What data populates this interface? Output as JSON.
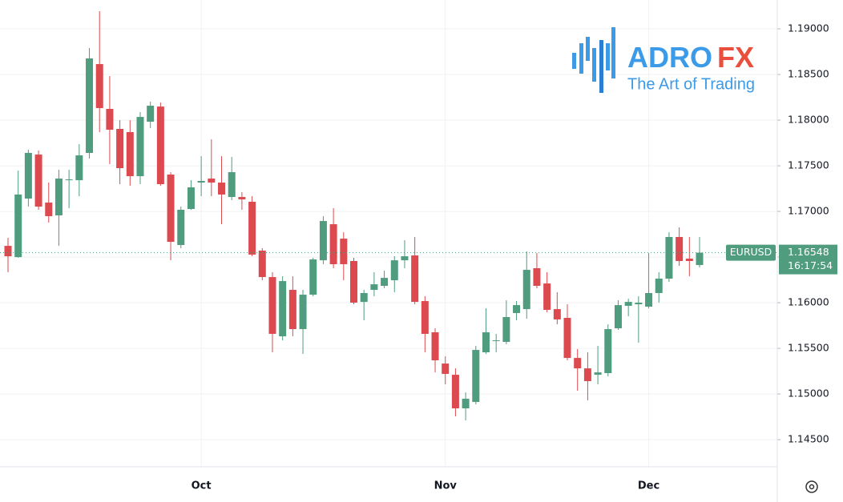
{
  "chart_data": {
    "type": "candlestick",
    "symbol": "EURUSD",
    "countdown": "16:17:54",
    "logo": {
      "name": "ADRO",
      "name_accent": "FX",
      "tagline": "The Art of Trading"
    },
    "categories": [
      null,
      null,
      null,
      null,
      null,
      null,
      null,
      null,
      null,
      null,
      null,
      null,
      null,
      null,
      null,
      null,
      null,
      null,
      null,
      "Oct",
      null,
      null,
      null,
      null,
      null,
      null,
      null,
      null,
      null,
      null,
      null,
      null,
      null,
      null,
      null,
      null,
      null,
      null,
      null,
      null,
      null,
      null,
      null,
      "Nov",
      null,
      null,
      null,
      null,
      null,
      null,
      null,
      null,
      null,
      null,
      null,
      null,
      null,
      null,
      null,
      null,
      null,
      null,
      null,
      "Dec",
      null,
      null,
      null,
      null,
      null
    ],
    "open": [
      1.16623,
      1.165,
      1.17141,
      1.17623,
      1.17097,
      1.16957,
      1.17342,
      1.17342,
      1.17641,
      1.18614,
      1.18123,
      1.17904,
      1.17869,
      1.17386,
      1.17983,
      1.18149,
      1.17404,
      1.16632,
      1.17027,
      1.17316,
      1.1736,
      1.17316,
      1.17158,
      1.17158,
      1.17106,
      1.16571,
      1.16281,
      1.15632,
      1.16141,
      1.15711,
      1.16088,
      1.16465,
      1.1686,
      1.16702,
      1.16457,
      1.16009,
      1.16141,
      1.16185,
      1.16246,
      1.16465,
      1.16518,
      1.16018,
      1.15676,
      1.15334,
      1.15211,
      1.14843,
      1.14913,
      1.15457,
      1.1558,
      1.15571,
      1.15887,
      1.1593,
      1.16378,
      1.16211,
      1.1593,
      1.15834,
      1.15395,
      1.15281,
      1.15211,
      1.15229,
      1.1572,
      1.15966,
      1.15983,
      1.15957,
      1.16106,
      1.16264,
      1.1672,
      1.16483,
      1.16413
    ],
    "high": [
      1.16711,
      1.17448,
      1.17676,
      1.17667,
      1.17316,
      1.17456,
      1.17456,
      1.17737,
      1.1879,
      1.19193,
      1.18483,
      1.18,
      1.18,
      1.18088,
      1.18202,
      1.18193,
      1.1743,
      1.17053,
      1.17342,
      1.17606,
      1.1779,
      1.17606,
      1.17597,
      1.17211,
      1.17167,
      1.16597,
      1.16334,
      1.1629,
      1.1629,
      1.16141,
      1.16492,
      1.16948,
      1.17036,
      1.16772,
      1.16492,
      1.16141,
      1.16334,
      1.16351,
      1.16509,
      1.16685,
      1.1672,
      1.16071,
      1.1572,
      1.15413,
      1.15281,
      1.15018,
      1.15527,
      1.15939,
      1.15659,
      1.16027,
      1.16018,
      1.16562,
      1.16544,
      1.16334,
      1.16115,
      1.15983,
      1.15492,
      1.15457,
      1.15527,
      1.15764,
      1.16027,
      1.16044,
      1.16071,
      1.16544,
      1.16334,
      1.16772,
      1.16825,
      1.1672,
      1.1672
    ],
    "low": [
      1.16334,
      1.16492,
      1.17053,
      1.17018,
      1.16878,
      1.16623,
      1.17036,
      1.17167,
      1.17579,
      1.17869,
      1.17518,
      1.17299,
      1.17281,
      1.17299,
      1.17913,
      1.17281,
      1.16465,
      1.16597,
      1.17018,
      1.17167,
      1.17167,
      1.1686,
      1.17123,
      1.17018,
      1.16509,
      1.16246,
      1.15457,
      1.15588,
      1.15632,
      1.15439,
      1.16071,
      1.16422,
      1.16378,
      1.16246,
      1.15983,
      1.15808,
      1.16071,
      1.16158,
      1.16115,
      1.16378,
      1.15983,
      1.15457,
      1.15237,
      1.15106,
      1.14755,
      1.14711,
      1.14887,
      1.15439,
      1.15457,
      1.15545,
      1.15808,
      1.15825,
      1.16158,
      1.15895,
      1.15764,
      1.15369,
      1.15036,
      1.14931,
      1.15106,
      1.15194,
      1.15703,
      1.15852,
      1.15562,
      1.15939,
      1.16001,
      1.16229,
      1.16404,
      1.1629,
      1.16387
    ],
    "close": [
      1.16509,
      1.17185,
      1.17641,
      1.17053,
      1.16948,
      1.1736,
      1.17351,
      1.17614,
      1.18676,
      1.18132,
      1.17895,
      1.17474,
      1.17386,
      1.18035,
      1.18158,
      1.17299,
      1.16667,
      1.17018,
      1.17264,
      1.17334,
      1.17316,
      1.17185,
      1.1743,
      1.17132,
      1.16527,
      1.16281,
      1.15659,
      1.16237,
      1.15711,
      1.16088,
      1.16474,
      1.16895,
      1.16422,
      1.16422,
      1.16001,
      1.16106,
      1.16202,
      1.16272,
      1.16465,
      1.16509,
      1.16009,
      1.15659,
      1.15369,
      1.1522,
      1.14843,
      1.14948,
      1.15483,
      1.15676,
      1.15588,
      1.15843,
      1.15974,
      1.1636,
      1.16185,
      1.15922,
      1.15817,
      1.15395,
      1.15281,
      1.15141,
      1.15237,
      1.15711,
      1.15974,
      1.16009,
      1.16001,
      1.16106,
      1.16264,
      1.1672,
      1.16457,
      1.16457,
      1.16548
    ],
    "up_color": "#4f9c7f",
    "down_color": "#dc4a4f",
    "ylim": [
      1.14203,
      1.19316
    ],
    "yticks": [
      {
        "value": 1.145,
        "label": "1.14500"
      },
      {
        "value": 1.15,
        "label": "1.15000"
      },
      {
        "value": 1.155,
        "label": "1.15500"
      },
      {
        "value": 1.16,
        "label": "1.16000"
      },
      {
        "value": 1.165,
        "label": "1.16500"
      },
      {
        "value": 1.17,
        "label": "1.17000"
      },
      {
        "value": 1.175,
        "label": "1.17500"
      },
      {
        "value": 1.18,
        "label": "1.18000"
      },
      {
        "value": 1.185,
        "label": "1.18500"
      },
      {
        "value": 1.19,
        "label": "1.19000"
      }
    ],
    "grid": true
  }
}
